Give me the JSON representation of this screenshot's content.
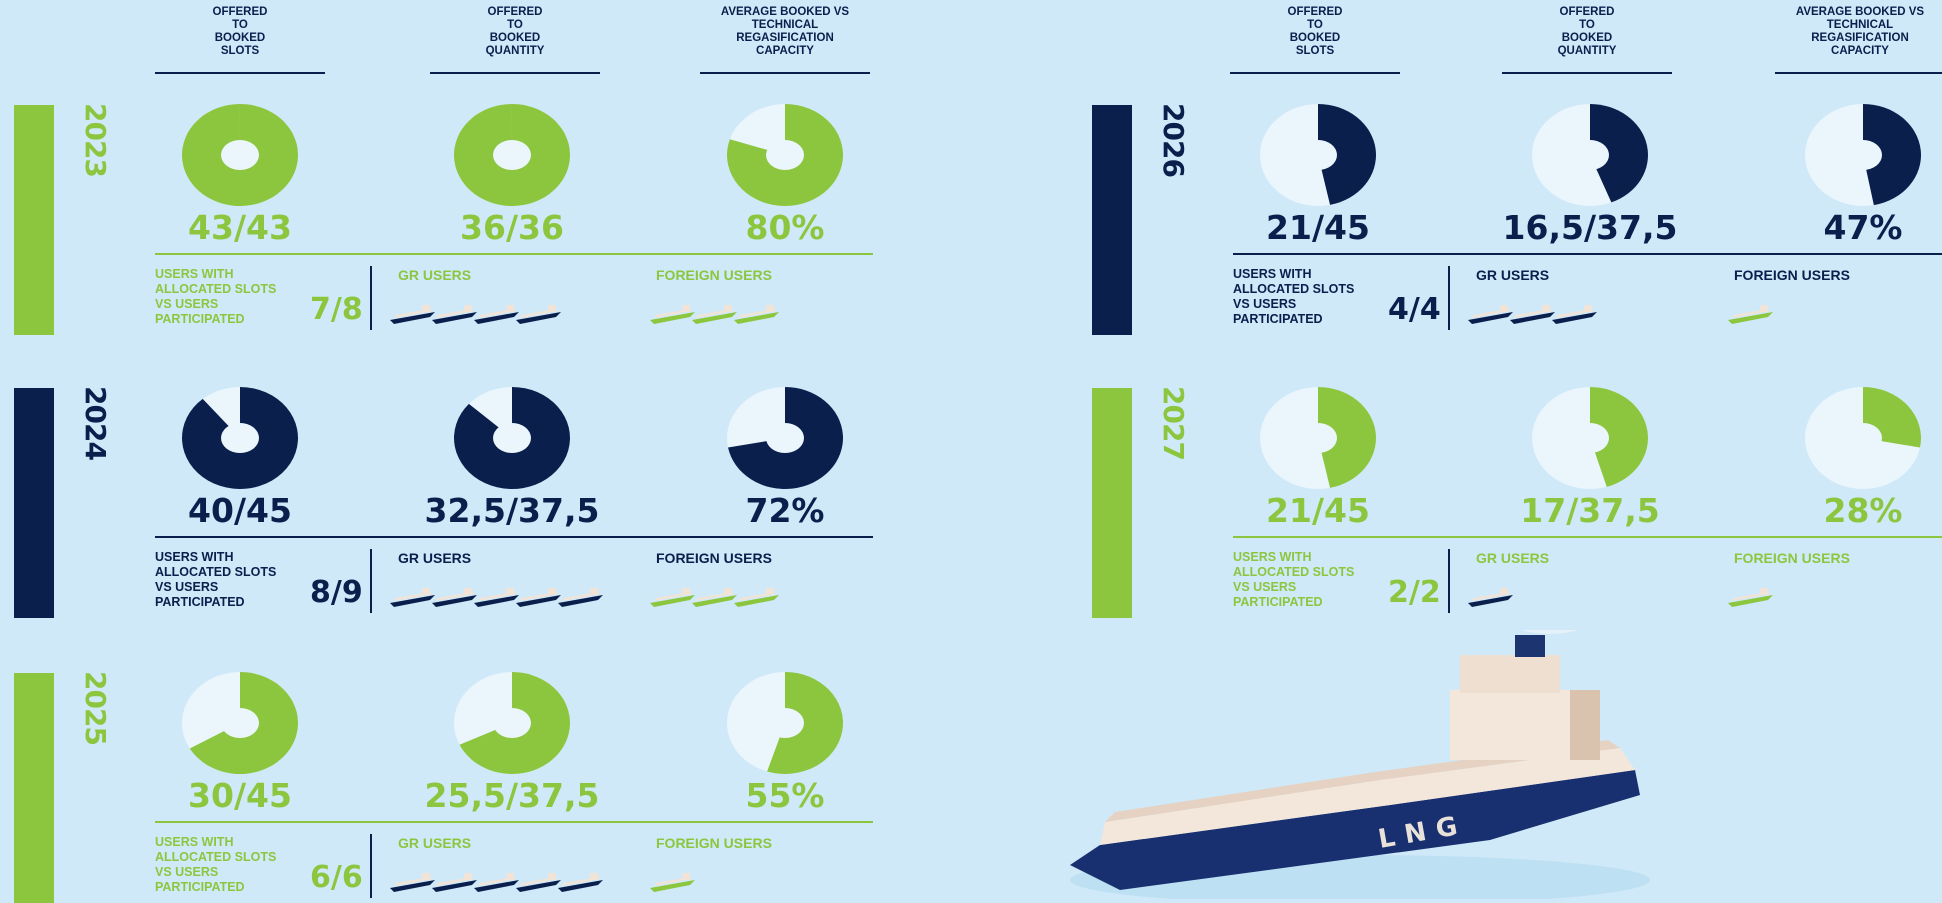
{
  "colors": {
    "green": "#8cc63f",
    "navy": "#0b1f4d",
    "light": "#eaf5fc",
    "background": "#cfe9f8"
  },
  "column_headers": [
    "OFFERED\nTO\nBOOKED\nSLOTS",
    "OFFERED\nTO\nBOOKED\nQUANTITY",
    "AVERAGE BOOKED VS\nTECHNICAL\nREGASIFICATION\nCAPACITY"
  ],
  "users_text": "USERS WITH\nALLOCATED SLOTS\nVS USERS\nPARTICIPATED",
  "gr_users_label": "GR USERS",
  "foreign_users_label": "FOREIGN USERS",
  "ship_illustration_label": "LNG",
  "chart_data": {
    "type": "pie",
    "years": [
      {
        "year": "2023",
        "theme": "green",
        "metrics": [
          {
            "label": "43/43",
            "booked": 43,
            "offered": 43
          },
          {
            "label": "36/36",
            "booked": 36,
            "offered": 36
          },
          {
            "label": "80%",
            "booked": 80,
            "offered": 100
          }
        ],
        "users": {
          "label": "7/8",
          "allocated": 7,
          "participated": 8,
          "gr_users": 4,
          "foreign_users": 3
        }
      },
      {
        "year": "2024",
        "theme": "navy",
        "metrics": [
          {
            "label": "40/45",
            "booked": 40,
            "offered": 45
          },
          {
            "label": "32,5/37,5",
            "booked": 32.5,
            "offered": 37.5
          },
          {
            "label": "72%",
            "booked": 72,
            "offered": 100
          }
        ],
        "users": {
          "label": "8/9",
          "allocated": 8,
          "participated": 9,
          "gr_users": 5,
          "foreign_users": 3
        }
      },
      {
        "year": "2025",
        "theme": "green",
        "metrics": [
          {
            "label": "30/45",
            "booked": 30,
            "offered": 45
          },
          {
            "label": "25,5/37,5",
            "booked": 25.5,
            "offered": 37.5
          },
          {
            "label": "55%",
            "booked": 55,
            "offered": 100
          }
        ],
        "users": {
          "label": "6/6",
          "allocated": 6,
          "participated": 6,
          "gr_users": 5,
          "foreign_users": 1
        }
      },
      {
        "year": "2026",
        "theme": "navy",
        "metrics": [
          {
            "label": "21/45",
            "booked": 21,
            "offered": 45
          },
          {
            "label": "16,5/37,5",
            "booked": 16.5,
            "offered": 37.5
          },
          {
            "label": "47%",
            "booked": 47,
            "offered": 100
          }
        ],
        "users": {
          "label": "4/4",
          "allocated": 4,
          "participated": 4,
          "gr_users": 3,
          "foreign_users": 1
        }
      },
      {
        "year": "2027",
        "theme": "green",
        "metrics": [
          {
            "label": "21/45",
            "booked": 21,
            "offered": 45
          },
          {
            "label": "17/37,5",
            "booked": 17,
            "offered": 37.5
          },
          {
            "label": "28%",
            "booked": 28,
            "offered": 100
          }
        ],
        "users": {
          "label": "2/2",
          "allocated": 2,
          "participated": 2,
          "gr_users": 1,
          "foreign_users": 1
        }
      }
    ]
  }
}
